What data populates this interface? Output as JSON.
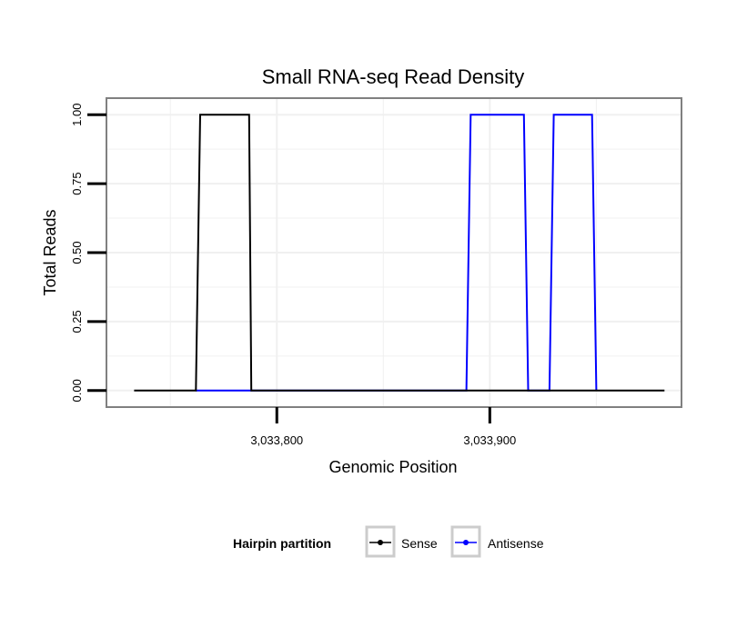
{
  "chart_data": {
    "type": "line",
    "title": "Small RNA-seq Read Density",
    "xlabel": "Genomic Position",
    "ylabel": "Total Reads",
    "xlim": [
      3033720,
      3033990
    ],
    "ylim": [
      -0.06,
      1.06
    ],
    "x_ticks": [
      3033800,
      3033900
    ],
    "x_tick_labels": [
      "3,033,800",
      "3,033,900"
    ],
    "y_ticks": [
      0,
      0.25,
      0.5,
      0.75,
      1.0
    ],
    "y_tick_labels": [
      "0.00",
      "0.25",
      "0.50",
      "0.75",
      "1.00"
    ],
    "grid": true,
    "legend": {
      "title": "Hairpin partition",
      "position": "bottom"
    },
    "colors": {
      "sense": "#000000",
      "antisense": "#0000ff",
      "panel_border": "#808080",
      "grid": "#f0f0f0"
    },
    "series": [
      {
        "name": "Sense",
        "key": "sense",
        "x": [
          3033733,
          3033762,
          3033764,
          3033787,
          3033788,
          3033982
        ],
        "y": [
          0,
          0,
          1,
          1,
          0,
          0
        ]
      },
      {
        "name": "Antisense",
        "key": "antisense",
        "x": [
          3033762,
          3033788,
          3033889,
          3033891,
          3033916,
          3033918,
          3033928,
          3033930,
          3033948,
          3033950
        ],
        "y": [
          0,
          0,
          0,
          1,
          1,
          0,
          0,
          1,
          1,
          0
        ]
      }
    ]
  }
}
